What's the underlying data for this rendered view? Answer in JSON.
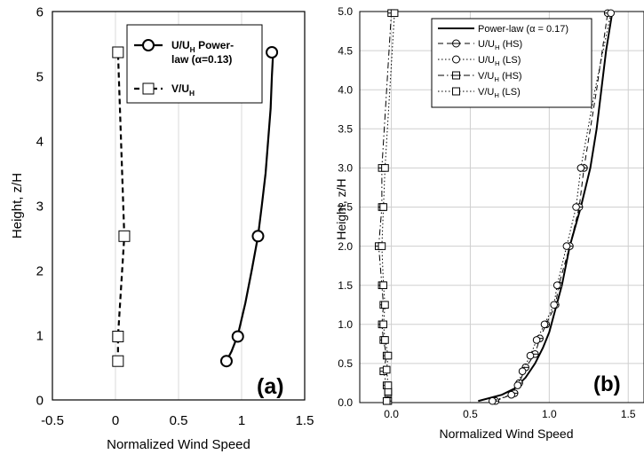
{
  "colors": {
    "line": "#000000",
    "grid_a": "#d9d9d9",
    "grid_b": "#cfcfcf",
    "text": "#000000"
  },
  "chart_data": [
    {
      "type": "line",
      "panel_label": "(a)",
      "xlabel": "Normalized Wind Speed",
      "ylabel": "Height, z/H",
      "xlim": [
        -0.5,
        1.5
      ],
      "ylim": [
        0,
        6
      ],
      "xticks": [
        "-0.5",
        "0",
        "0.5",
        "1",
        "1.5"
      ],
      "yticks": [
        "0",
        "1",
        "2",
        "3",
        "4",
        "5",
        "6"
      ],
      "grid": "vertical",
      "legend_position": "top-right",
      "series": [
        {
          "name_main": "U/U",
          "name_sub": "H",
          "name_tail": " Power-",
          "name_line2": "law (α=0.13)",
          "marker": "circle",
          "style": "solid",
          "curve": [
            [
              0.88,
              0.6
            ],
            [
              0.92,
              0.75
            ],
            [
              0.97,
              1.0
            ],
            [
              1.03,
              1.5
            ],
            [
              1.08,
              2.0
            ],
            [
              1.13,
              2.53
            ],
            [
              1.16,
              3.0
            ],
            [
              1.19,
              3.5
            ],
            [
              1.21,
              4.0
            ],
            [
              1.23,
              4.5
            ],
            [
              1.24,
              5.0
            ],
            [
              1.25,
              5.37
            ]
          ],
          "points": [
            [
              0.88,
              0.6
            ],
            [
              0.97,
              0.98
            ],
            [
              1.13,
              2.53
            ],
            [
              1.24,
              5.37
            ]
          ]
        },
        {
          "name_main": "V/U",
          "name_sub": "H",
          "marker": "square",
          "style": "dashed",
          "curve": [
            [
              0.02,
              0.6
            ],
            [
              0.02,
              0.98
            ],
            [
              0.07,
              2.53
            ],
            [
              0.02,
              5.37
            ]
          ],
          "points": [
            [
              0.02,
              0.6
            ],
            [
              0.02,
              0.98
            ],
            [
              0.07,
              2.53
            ],
            [
              0.02,
              5.37
            ]
          ]
        }
      ]
    },
    {
      "type": "line",
      "panel_label": "(b)",
      "xlabel": "Normalized Wind Speed",
      "ylabel": "Height, z/H",
      "xlim": [
        -0.2,
        1.6
      ],
      "ylim": [
        0,
        5
      ],
      "xticks": [
        "0.0",
        "0.5",
        "1.0",
        "1.5"
      ],
      "yticks": [
        "0.0",
        "0.5",
        "1.0",
        "1.5",
        "2.0",
        "2.5",
        "3.0",
        "3.5",
        "4.0",
        "4.5",
        "5.0"
      ],
      "grid": "both",
      "legend_position": "top-right",
      "series": [
        {
          "name_main": "Power-law (α = 0.17)",
          "marker": "none",
          "style": "solid",
          "curve": [
            [
              0.55,
              0.02
            ],
            [
              0.7,
              0.1
            ],
            [
              0.78,
              0.18
            ],
            [
              0.85,
              0.32
            ],
            [
              0.91,
              0.5
            ],
            [
              0.96,
              0.7
            ],
            [
              1.0,
              0.9
            ],
            [
              1.04,
              1.2
            ],
            [
              1.08,
              1.5
            ],
            [
              1.13,
              2.0
            ],
            [
              1.2,
              2.5
            ],
            [
              1.26,
              3.0
            ],
            [
              1.3,
              3.5
            ],
            [
              1.33,
              4.0
            ],
            [
              1.36,
              4.5
            ],
            [
              1.4,
              5.0
            ]
          ],
          "points": []
        },
        {
          "name_main": "U/U",
          "name_sub": "H",
          "name_tail": " (HS)",
          "marker": "circle-bar",
          "style": "dashed",
          "curve": [
            [
              0.66,
              0.02
            ],
            [
              0.78,
              0.12
            ],
            [
              0.81,
              0.25
            ],
            [
              0.85,
              0.45
            ],
            [
              0.91,
              0.62
            ],
            [
              0.94,
              0.82
            ],
            [
              0.98,
              1.0
            ],
            [
              1.04,
              1.25
            ],
            [
              1.06,
              1.5
            ],
            [
              1.13,
              2.0
            ],
            [
              1.19,
              2.5
            ],
            [
              1.22,
              3.0
            ],
            [
              1.3,
              4.0
            ],
            [
              1.37,
              4.98
            ]
          ],
          "points": [
            [
              0.66,
              0.02
            ],
            [
              0.78,
              0.12
            ],
            [
              0.81,
              0.25
            ],
            [
              0.85,
              0.45
            ],
            [
              0.91,
              0.62
            ],
            [
              0.94,
              0.82
            ],
            [
              0.98,
              1.0
            ],
            [
              1.04,
              1.25
            ],
            [
              1.06,
              1.5
            ],
            [
              1.13,
              2.0
            ],
            [
              1.19,
              2.5
            ],
            [
              1.22,
              3.0
            ],
            [
              1.37,
              4.98
            ]
          ]
        },
        {
          "name_main": "U/U",
          "name_sub": "H",
          "name_tail": " (LS)",
          "marker": "circle",
          "style": "dotted",
          "curve": [
            [
              0.64,
              0.02
            ],
            [
              0.76,
              0.1
            ],
            [
              0.8,
              0.22
            ],
            [
              0.83,
              0.4
            ],
            [
              0.88,
              0.6
            ],
            [
              0.92,
              0.8
            ],
            [
              0.97,
              1.0
            ],
            [
              1.03,
              1.25
            ],
            [
              1.05,
              1.5
            ],
            [
              1.11,
              2.0
            ],
            [
              1.17,
              2.5
            ],
            [
              1.2,
              3.0
            ],
            [
              1.29,
              4.0
            ],
            [
              1.39,
              4.98
            ]
          ],
          "points": [
            [
              0.64,
              0.02
            ],
            [
              0.76,
              0.1
            ],
            [
              0.8,
              0.22
            ],
            [
              0.83,
              0.4
            ],
            [
              0.88,
              0.6
            ],
            [
              0.92,
              0.8
            ],
            [
              0.97,
              1.0
            ],
            [
              1.03,
              1.25
            ],
            [
              1.05,
              1.5
            ],
            [
              1.11,
              2.0
            ],
            [
              1.17,
              2.5
            ],
            [
              1.2,
              3.0
            ],
            [
              1.39,
              4.98
            ]
          ]
        },
        {
          "name_main": "V/U",
          "name_sub": "H",
          "name_tail": " (HS)",
          "marker": "square-bar",
          "style": "dashdot",
          "curve": [
            [
              -0.02,
              0.02
            ],
            [
              -0.02,
              0.12
            ],
            [
              -0.03,
              0.22
            ],
            [
              -0.05,
              0.4
            ],
            [
              -0.03,
              0.6
            ],
            [
              -0.05,
              0.8
            ],
            [
              -0.06,
              1.0
            ],
            [
              -0.05,
              1.25
            ],
            [
              -0.06,
              1.5
            ],
            [
              -0.08,
              2.0
            ],
            [
              -0.06,
              2.5
            ],
            [
              -0.06,
              3.0
            ],
            [
              0.0,
              4.98
            ]
          ],
          "points": [
            [
              -0.02,
              0.02
            ],
            [
              -0.02,
              0.12
            ],
            [
              -0.03,
              0.22
            ],
            [
              -0.05,
              0.4
            ],
            [
              -0.03,
              0.6
            ],
            [
              -0.05,
              0.8
            ],
            [
              -0.06,
              1.0
            ],
            [
              -0.05,
              1.25
            ],
            [
              -0.06,
              1.5
            ],
            [
              -0.08,
              2.0
            ],
            [
              -0.06,
              2.5
            ],
            [
              -0.06,
              3.0
            ],
            [
              0.0,
              4.98
            ]
          ]
        },
        {
          "name_main": "V/U",
          "name_sub": "H",
          "name_tail": " (LS)",
          "marker": "square",
          "style": "dotted",
          "curve": [
            [
              -0.03,
              0.02
            ],
            [
              -0.02,
              0.14
            ],
            [
              -0.02,
              0.22
            ],
            [
              -0.03,
              0.42
            ],
            [
              -0.02,
              0.6
            ],
            [
              -0.04,
              0.8
            ],
            [
              -0.05,
              1.0
            ],
            [
              -0.04,
              1.25
            ],
            [
              -0.05,
              1.5
            ],
            [
              -0.06,
              2.0
            ],
            [
              -0.05,
              2.5
            ],
            [
              -0.04,
              3.0
            ],
            [
              0.02,
              4.98
            ]
          ],
          "points": [
            [
              -0.03,
              0.02
            ],
            [
              -0.02,
              0.14
            ],
            [
              -0.02,
              0.22
            ],
            [
              -0.03,
              0.42
            ],
            [
              -0.02,
              0.6
            ],
            [
              -0.04,
              0.8
            ],
            [
              -0.05,
              1.0
            ],
            [
              -0.04,
              1.25
            ],
            [
              -0.05,
              1.5
            ],
            [
              -0.06,
              2.0
            ],
            [
              -0.05,
              2.5
            ],
            [
              -0.04,
              3.0
            ],
            [
              0.02,
              4.98
            ]
          ]
        }
      ]
    }
  ]
}
